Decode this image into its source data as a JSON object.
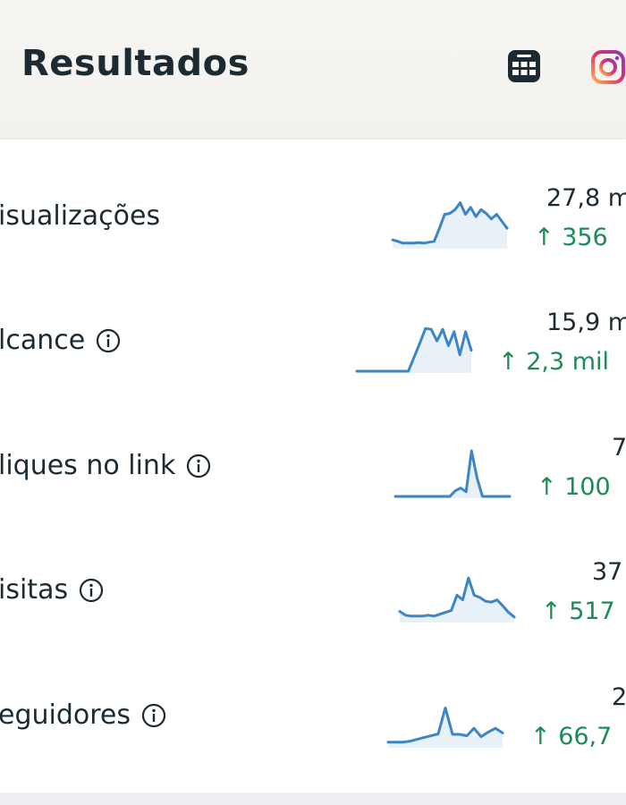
{
  "header": {
    "title": "Resultados",
    "icons": [
      "table-icon",
      "instagram-icon"
    ]
  },
  "colors": {
    "sparkline": "#3d86c6",
    "fill": "#e8f0f8",
    "positive": "#1e8a55",
    "text": "#1c2b33"
  },
  "metrics": [
    {
      "label": "isualizações",
      "info": false,
      "value": "27,8 m",
      "change": "↑ 356",
      "sparkline": [
        15,
        12,
        8,
        8,
        8,
        9,
        8,
        10,
        12,
        40,
        70,
        72,
        80,
        95,
        70,
        85,
        65,
        80,
        72,
        60,
        70,
        55,
        40
      ]
    },
    {
      "label": "lcance",
      "info": true,
      "value": "15,9 m",
      "change": "↑ 2,3 mil",
      "sparkline": [
        0,
        0,
        0,
        0,
        0,
        0,
        0,
        0,
        0,
        0,
        30,
        60,
        92,
        90,
        65,
        90,
        55,
        85,
        35,
        85,
        45
      ]
    },
    {
      "label": "liques no link",
      "info": true,
      "value": "7",
      "change": "↑ 100",
      "sparkline": [
        0,
        0,
        0,
        0,
        0,
        0,
        0,
        0,
        0,
        0,
        0,
        12,
        18,
        10,
        98,
        40,
        0,
        0,
        0,
        0,
        0,
        0
      ]
    },
    {
      "label": "isitas",
      "info": true,
      "value": "37",
      "change": "↑ 517",
      "sparkline": [
        20,
        12,
        10,
        10,
        10,
        12,
        10,
        14,
        18,
        22,
        55,
        45,
        92,
        55,
        50,
        42,
        40,
        45,
        32,
        18,
        8
      ]
    },
    {
      "label": "eguidores",
      "info": true,
      "value": "2",
      "change": "↑ 66,7",
      "sparkline": [
        8,
        8,
        8,
        10,
        14,
        18,
        22,
        26,
        82,
        25,
        25,
        22,
        38,
        20,
        30,
        38,
        28
      ]
    }
  ]
}
